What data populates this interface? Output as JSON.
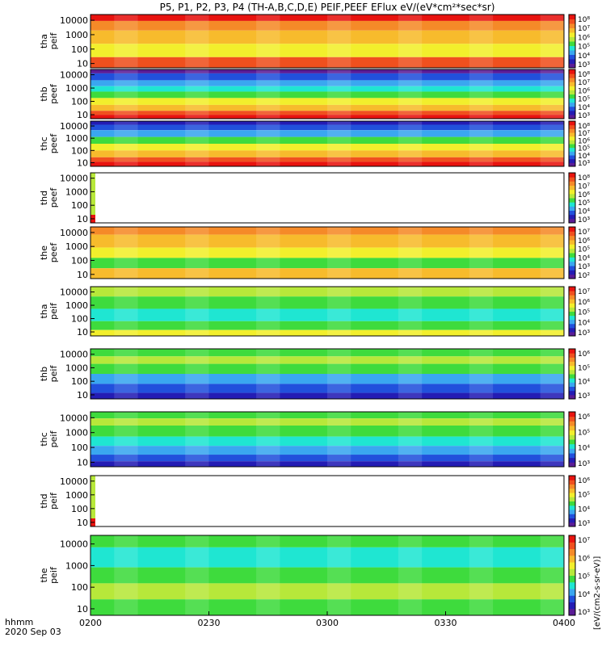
{
  "title": "P5, P1, P2, P3, P4 (TH-A,B,C,D,E) PEIF,PEEF EFlux eV/(eV*cm²*sec*sr)",
  "time_axis": {
    "corner_label_1": "hhmm",
    "corner_label_2": "2020 Sep 03",
    "ticks": [
      "0200",
      "0230",
      "0300",
      "0330",
      "0400"
    ]
  },
  "colorbar_label": "[eV/(cm2-s-sr-eV)]",
  "colors": {
    "red": "#e8130f",
    "orange_red": "#f0501e",
    "orange": "#f58a28",
    "yellow_orange": "#f7bb2c",
    "yellow": "#f2ef2c",
    "yellow_green": "#b7e83a",
    "green": "#3edb3d",
    "cyan": "#1fe6d2",
    "sky": "#3aa7f0",
    "blue": "#2150dc",
    "navy": "#241cb4",
    "purple": "#5a1c96",
    "black": "#000000"
  },
  "chart_data": [
    {
      "type": "heatmap",
      "ylabel": "tha peif",
      "yticks": [
        "10000",
        "1000",
        "100",
        "10"
      ],
      "colorbar_ticks": [
        "10⁸",
        "10⁷",
        "10⁶",
        "10⁵",
        "10⁴",
        "10³"
      ],
      "xlim": [
        "0200",
        "0400"
      ],
      "ylim": [
        5,
        25000
      ],
      "yscale": "log"
    },
    {
      "type": "heatmap",
      "ylabel": "thb peef",
      "yticks": [
        "10000",
        "1000",
        "100",
        "10"
      ],
      "colorbar_ticks": [
        "10⁸",
        "10⁷",
        "10⁶",
        "10⁵",
        "10⁴",
        "10³"
      ],
      "xlim": [
        "0200",
        "0400"
      ],
      "ylim": [
        5,
        25000
      ],
      "yscale": "log"
    },
    {
      "type": "heatmap",
      "ylabel": "thc peef",
      "yticks": [
        "10000",
        "1000",
        "100",
        "10"
      ],
      "colorbar_ticks": [
        "10⁸",
        "10⁷",
        "10⁶",
        "10⁵",
        "10⁴",
        "10³"
      ],
      "xlim": [
        "0200",
        "0400"
      ],
      "ylim": [
        5,
        25000
      ],
      "yscale": "log"
    },
    {
      "type": "heatmap",
      "ylabel": "thd peef",
      "yticks": [
        "10000",
        "1000",
        "100",
        "10"
      ],
      "colorbar_ticks": [
        "10⁸",
        "10⁷",
        "10⁶",
        "10⁵",
        "10⁴",
        "10³"
      ],
      "xlim": [
        "0200",
        "0400"
      ],
      "ylim": [
        5,
        25000
      ],
      "yscale": "log"
    },
    {
      "type": "heatmap",
      "ylabel": "the peef",
      "yticks": [
        "10000",
        "1000",
        "100",
        "10"
      ],
      "colorbar_ticks": [
        "10⁷",
        "10⁶",
        "10⁵",
        "10⁴",
        "10³",
        "10²"
      ],
      "xlim": [
        "0200",
        "0400"
      ],
      "ylim": [
        5,
        25000
      ],
      "yscale": "log"
    },
    {
      "type": "heatmap",
      "ylabel": "tha peif",
      "yticks": [
        "10000",
        "1000",
        "100",
        "10"
      ],
      "colorbar_ticks": [
        "10⁷",
        "10⁶",
        "10⁵",
        "10⁴",
        "10³"
      ],
      "xlim": [
        "0200",
        "0400"
      ],
      "ylim": [
        5,
        25000
      ],
      "yscale": "log"
    },
    {
      "type": "heatmap",
      "ylabel": "thb peif",
      "yticks": [
        "10000",
        "1000",
        "100",
        "10"
      ],
      "colorbar_ticks": [
        "10⁶",
        "10⁵",
        "10⁴",
        "10³"
      ],
      "xlim": [
        "0200",
        "0400"
      ],
      "ylim": [
        5,
        25000
      ],
      "yscale": "log"
    },
    {
      "type": "heatmap",
      "ylabel": "thc peif",
      "yticks": [
        "10000",
        "1000",
        "100",
        "10"
      ],
      "colorbar_ticks": [
        "10⁶",
        "10⁵",
        "10⁴",
        "10³"
      ],
      "xlim": [
        "0200",
        "0400"
      ],
      "ylim": [
        5,
        25000
      ],
      "yscale": "log"
    },
    {
      "type": "heatmap",
      "ylabel": "thd peif",
      "yticks": [
        "10000",
        "1000",
        "100",
        "10"
      ],
      "colorbar_ticks": [
        "10⁶",
        "10⁵",
        "10⁴",
        "10³"
      ],
      "xlim": [
        "0200",
        "0400"
      ],
      "ylim": [
        5,
        25000
      ],
      "yscale": "log"
    },
    {
      "type": "heatmap",
      "ylabel": "the peif",
      "yticks": [
        "10000",
        "1000",
        "100",
        "10"
      ],
      "colorbar_ticks": [
        "10⁷",
        "10⁶",
        "10⁵",
        "10⁴",
        "10³"
      ],
      "xlim": [
        "0200",
        "0400"
      ],
      "ylim": [
        5,
        25000
      ],
      "yscale": "log"
    }
  ]
}
